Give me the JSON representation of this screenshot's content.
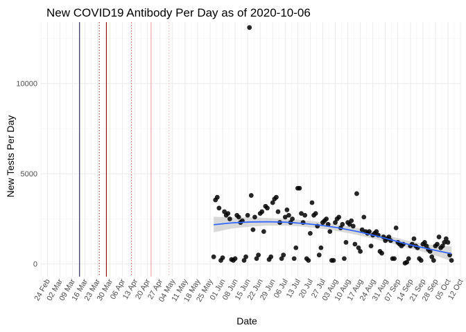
{
  "chart_data": {
    "type": "scatter",
    "title": "New COVID19 Antibody Per Day as of 2020-10-06",
    "xlabel": "Date",
    "ylabel": "New Tests Per Day",
    "x_axis": {
      "kind": "date",
      "range": [
        "2020-02-20",
        "2020-10-12"
      ],
      "tick_labels": [
        "24 Feb",
        "02 Mar",
        "09 Mar",
        "16 Mar",
        "23 Mar",
        "30 Mar",
        "06 Apr",
        "13 Apr",
        "20 Apr",
        "27 Apr",
        "04 May",
        "11 May",
        "18 May",
        "25 May",
        "01 Jun",
        "08 Jun",
        "15 Jun",
        "22 Jun",
        "29 Jun",
        "06 Jul",
        "13 Jul",
        "20 Jul",
        "27 Jul",
        "03 Aug",
        "10 Aug",
        "17 Aug",
        "24 Aug",
        "31 Aug",
        "07 Sep",
        "14 Sep",
        "21 Sep",
        "28 Sep",
        "05 Oct",
        "12 Oct"
      ],
      "tick_dates": [
        "2020-02-24",
        "2020-03-02",
        "2020-03-09",
        "2020-03-16",
        "2020-03-23",
        "2020-03-30",
        "2020-04-06",
        "2020-04-13",
        "2020-04-20",
        "2020-04-27",
        "2020-05-04",
        "2020-05-11",
        "2020-05-18",
        "2020-05-25",
        "2020-06-01",
        "2020-06-08",
        "2020-06-15",
        "2020-06-22",
        "2020-06-29",
        "2020-07-06",
        "2020-07-13",
        "2020-07-20",
        "2020-07-27",
        "2020-08-03",
        "2020-08-10",
        "2020-08-17",
        "2020-08-24",
        "2020-08-31",
        "2020-09-07",
        "2020-09-14",
        "2020-09-21",
        "2020-09-28",
        "2020-10-05",
        "2020-10-12"
      ]
    },
    "y_axis": {
      "range": [
        -700,
        13400
      ],
      "ticks": [
        0,
        5000,
        10000
      ],
      "tick_labels": [
        "0",
        "5000",
        "10000"
      ]
    },
    "vertical_lines": [
      {
        "date": "2020-03-13",
        "color": "#1a1a4d",
        "style": "solid"
      },
      {
        "date": "2020-03-24",
        "color": "#8b1a1a",
        "style": "dotted"
      },
      {
        "date": "2020-03-28",
        "color": "#8b0000",
        "style": "solid"
      },
      {
        "date": "2020-04-11",
        "color": "#d96060",
        "style": "dotted"
      },
      {
        "date": "2020-04-22",
        "color": "#e8a0a0",
        "style": "solid"
      },
      {
        "date": "2020-05-02",
        "color": "#eebbbb",
        "style": "dotted"
      }
    ],
    "points": [
      {
        "x": "2020-05-27",
        "y": 400
      },
      {
        "x": "2020-05-28",
        "y": 3550
      },
      {
        "x": "2020-05-29",
        "y": 3700
      },
      {
        "x": "2020-05-30",
        "y": 3100
      },
      {
        "x": "2020-05-31",
        "y": 200
      },
      {
        "x": "2020-06-01",
        "y": 350
      },
      {
        "x": "2020-06-02",
        "y": 2900
      },
      {
        "x": "2020-06-03",
        "y": 2700
      },
      {
        "x": "2020-06-04",
        "y": 2800
      },
      {
        "x": "2020-06-05",
        "y": 2500
      },
      {
        "x": "2020-06-06",
        "y": 250
      },
      {
        "x": "2020-06-07",
        "y": 200
      },
      {
        "x": "2020-06-08",
        "y": 300
      },
      {
        "x": "2020-06-09",
        "y": 2700
      },
      {
        "x": "2020-06-10",
        "y": 2600
      },
      {
        "x": "2020-06-11",
        "y": 2300
      },
      {
        "x": "2020-06-12",
        "y": 2400
      },
      {
        "x": "2020-06-13",
        "y": 200
      },
      {
        "x": "2020-06-14",
        "y": 400
      },
      {
        "x": "2020-06-15",
        "y": 2700
      },
      {
        "x": "2020-06-16",
        "y": 13100
      },
      {
        "x": "2020-06-17",
        "y": 3800
      },
      {
        "x": "2020-06-18",
        "y": 1900
      },
      {
        "x": "2020-06-19",
        "y": 2600
      },
      {
        "x": "2020-06-20",
        "y": 300
      },
      {
        "x": "2020-06-21",
        "y": 500
      },
      {
        "x": "2020-06-22",
        "y": 2800
      },
      {
        "x": "2020-06-23",
        "y": 2900
      },
      {
        "x": "2020-06-24",
        "y": 1800
      },
      {
        "x": "2020-06-25",
        "y": 3200
      },
      {
        "x": "2020-06-26",
        "y": 3100
      },
      {
        "x": "2020-06-27",
        "y": 250
      },
      {
        "x": "2020-06-28",
        "y": 400
      },
      {
        "x": "2020-06-29",
        "y": 3400
      },
      {
        "x": "2020-06-30",
        "y": 3600
      },
      {
        "x": "2020-07-01",
        "y": 3700
      },
      {
        "x": "2020-07-02",
        "y": 2900
      },
      {
        "x": "2020-07-03",
        "y": 2300
      },
      {
        "x": "2020-07-04",
        "y": 300
      },
      {
        "x": "2020-07-05",
        "y": 500
      },
      {
        "x": "2020-07-06",
        "y": 2600
      },
      {
        "x": "2020-07-07",
        "y": 3000
      },
      {
        "x": "2020-07-08",
        "y": 2700
      },
      {
        "x": "2020-07-09",
        "y": 2300
      },
      {
        "x": "2020-07-10",
        "y": 2500
      },
      {
        "x": "2020-07-11",
        "y": 300
      },
      {
        "x": "2020-07-12",
        "y": 900
      },
      {
        "x": "2020-07-13",
        "y": 4200
      },
      {
        "x": "2020-07-14",
        "y": 4200
      },
      {
        "x": "2020-07-15",
        "y": 2800
      },
      {
        "x": "2020-07-16",
        "y": 2300
      },
      {
        "x": "2020-07-17",
        "y": 2700
      },
      {
        "x": "2020-07-18",
        "y": 300
      },
      {
        "x": "2020-07-19",
        "y": 200
      },
      {
        "x": "2020-07-20",
        "y": 1700
      },
      {
        "x": "2020-07-21",
        "y": 3400
      },
      {
        "x": "2020-07-22",
        "y": 2700
      },
      {
        "x": "2020-07-23",
        "y": 2800
      },
      {
        "x": "2020-07-24",
        "y": 2100
      },
      {
        "x": "2020-07-25",
        "y": 500
      },
      {
        "x": "2020-07-26",
        "y": 900
      },
      {
        "x": "2020-07-27",
        "y": 2300
      },
      {
        "x": "2020-07-28",
        "y": 2400
      },
      {
        "x": "2020-07-29",
        "y": 2500
      },
      {
        "x": "2020-07-30",
        "y": 2200
      },
      {
        "x": "2020-07-31",
        "y": 1800
      },
      {
        "x": "2020-08-01",
        "y": 200
      },
      {
        "x": "2020-08-02",
        "y": 200
      },
      {
        "x": "2020-08-03",
        "y": 2300
      },
      {
        "x": "2020-08-04",
        "y": 2500
      },
      {
        "x": "2020-08-05",
        "y": 2600
      },
      {
        "x": "2020-08-06",
        "y": 2000
      },
      {
        "x": "2020-08-07",
        "y": 2200
      },
      {
        "x": "2020-08-08",
        "y": 300
      },
      {
        "x": "2020-08-09",
        "y": 1200
      },
      {
        "x": "2020-08-10",
        "y": 2300
      },
      {
        "x": "2020-08-11",
        "y": 2200
      },
      {
        "x": "2020-08-12",
        "y": 2400
      },
      {
        "x": "2020-08-13",
        "y": 2100
      },
      {
        "x": "2020-08-14",
        "y": 1100
      },
      {
        "x": "2020-08-15",
        "y": 3900
      },
      {
        "x": "2020-08-16",
        "y": 900
      },
      {
        "x": "2020-08-17",
        "y": 700
      },
      {
        "x": "2020-08-18",
        "y": 1900
      },
      {
        "x": "2020-08-19",
        "y": 2600
      },
      {
        "x": "2020-08-20",
        "y": 1800
      },
      {
        "x": "2020-08-21",
        "y": 1700
      },
      {
        "x": "2020-08-22",
        "y": 1800
      },
      {
        "x": "2020-08-23",
        "y": 1000
      },
      {
        "x": "2020-08-24",
        "y": 1600
      },
      {
        "x": "2020-08-25",
        "y": 1700
      },
      {
        "x": "2020-08-26",
        "y": 1800
      },
      {
        "x": "2020-08-27",
        "y": 1600
      },
      {
        "x": "2020-08-28",
        "y": 700
      },
      {
        "x": "2020-08-29",
        "y": 600
      },
      {
        "x": "2020-08-30",
        "y": 1500
      },
      {
        "x": "2020-08-31",
        "y": 1300
      },
      {
        "x": "2020-09-01",
        "y": 1400
      },
      {
        "x": "2020-09-02",
        "y": 1500
      },
      {
        "x": "2020-09-03",
        "y": 1300
      },
      {
        "x": "2020-09-04",
        "y": 300
      },
      {
        "x": "2020-09-05",
        "y": 300
      },
      {
        "x": "2020-09-06",
        "y": 2000
      },
      {
        "x": "2020-09-07",
        "y": 1200
      },
      {
        "x": "2020-09-08",
        "y": 1100
      },
      {
        "x": "2020-09-09",
        "y": 1000
      },
      {
        "x": "2020-09-10",
        "y": 1100
      },
      {
        "x": "2020-09-11",
        "y": 50
      },
      {
        "x": "2020-09-12",
        "y": 100
      },
      {
        "x": "2020-09-13",
        "y": 300
      },
      {
        "x": "2020-09-14",
        "y": 1000
      },
      {
        "x": "2020-09-15",
        "y": 1100
      },
      {
        "x": "2020-09-16",
        "y": 1400
      },
      {
        "x": "2020-09-17",
        "y": 1000
      },
      {
        "x": "2020-09-18",
        "y": 900
      },
      {
        "x": "2020-09-19",
        "y": 300
      },
      {
        "x": "2020-09-20",
        "y": 200
      },
      {
        "x": "2020-09-21",
        "y": 1100
      },
      {
        "x": "2020-09-22",
        "y": 1200
      },
      {
        "x": "2020-09-23",
        "y": 1000
      },
      {
        "x": "2020-09-24",
        "y": 800
      },
      {
        "x": "2020-09-25",
        "y": 700
      },
      {
        "x": "2020-09-26",
        "y": 400
      },
      {
        "x": "2020-09-27",
        "y": 200
      },
      {
        "x": "2020-09-28",
        "y": 1000
      },
      {
        "x": "2020-09-29",
        "y": 1100
      },
      {
        "x": "2020-09-30",
        "y": 1500
      },
      {
        "x": "2020-10-01",
        "y": 900
      },
      {
        "x": "2020-10-02",
        "y": 1000
      },
      {
        "x": "2020-10-03",
        "y": 1200
      },
      {
        "x": "2020-10-04",
        "y": 1400
      },
      {
        "x": "2020-10-05",
        "y": 1200
      },
      {
        "x": "2020-10-06",
        "y": 500
      },
      {
        "x": "2020-10-07",
        "y": 200
      }
    ],
    "smooth": {
      "color": "#3366ff",
      "band_color": "#cccccc",
      "points": [
        {
          "x": "2020-05-27",
          "y": 2180,
          "lo": 1750,
          "hi": 2620
        },
        {
          "x": "2020-06-06",
          "y": 2280,
          "lo": 1970,
          "hi": 2580
        },
        {
          "x": "2020-06-16",
          "y": 2330,
          "lo": 2070,
          "hi": 2590
        },
        {
          "x": "2020-06-26",
          "y": 2340,
          "lo": 2130,
          "hi": 2550
        },
        {
          "x": "2020-07-06",
          "y": 2320,
          "lo": 2140,
          "hi": 2500
        },
        {
          "x": "2020-07-16",
          "y": 2250,
          "lo": 2070,
          "hi": 2430
        },
        {
          "x": "2020-07-26",
          "y": 2150,
          "lo": 1970,
          "hi": 2330
        },
        {
          "x": "2020-08-05",
          "y": 2000,
          "lo": 1810,
          "hi": 2190
        },
        {
          "x": "2020-08-15",
          "y": 1810,
          "lo": 1620,
          "hi": 2000
        },
        {
          "x": "2020-08-25",
          "y": 1580,
          "lo": 1390,
          "hi": 1770
        },
        {
          "x": "2020-09-04",
          "y": 1320,
          "lo": 1130,
          "hi": 1510
        },
        {
          "x": "2020-09-14",
          "y": 1060,
          "lo": 860,
          "hi": 1260
        },
        {
          "x": "2020-09-24",
          "y": 840,
          "lo": 600,
          "hi": 1080
        },
        {
          "x": "2020-10-07",
          "y": 570,
          "lo": 170,
          "hi": 970
        }
      ]
    }
  }
}
